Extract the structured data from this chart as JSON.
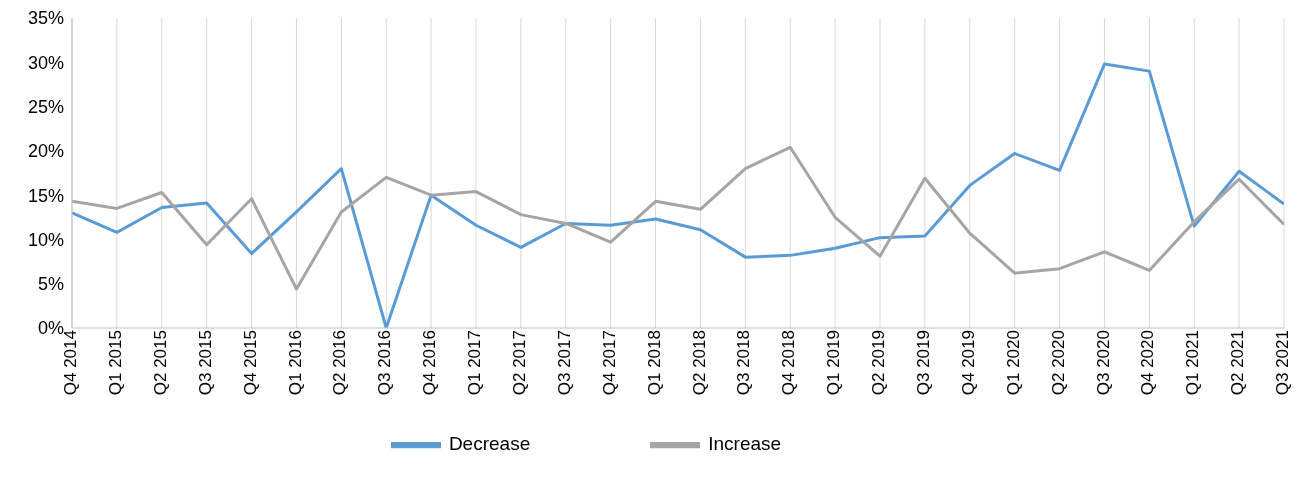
{
  "chart_data": {
    "type": "line",
    "categories": [
      "Q4 2014",
      "Q1 2015",
      "Q2 2015",
      "Q3 2015",
      "Q4 2015",
      "Q1 2016",
      "Q2 2016",
      "Q3 2016",
      "Q4 2016",
      "Q1 2017",
      "Q2 2017",
      "Q3 2017",
      "Q4 2017",
      "Q1 2018",
      "Q2 2018",
      "Q3 2018",
      "Q4 2018",
      "Q1 2019",
      "Q2 2019",
      "Q3 2019",
      "Q4 2019",
      "Q1 2020",
      "Q2 2020",
      "Q3 2020",
      "Q4 2020",
      "Q1 2021",
      "Q2 2021",
      "Q3 2021"
    ],
    "series": [
      {
        "name": "Decrease",
        "color": "#5b9bd5",
        "values": [
          13,
          10.8,
          13.6,
          14.1,
          8.4,
          13.1,
          18,
          0,
          15,
          11.6,
          9.1,
          11.8,
          11.6,
          12.3,
          11.1,
          8,
          8.2,
          9,
          10.2,
          10.4,
          16.1,
          19.7,
          17.8,
          29.8,
          29,
          11.5,
          17.7,
          14
        ]
      },
      {
        "name": "Increase",
        "color": "#a5a5a5",
        "values": [
          14.3,
          13.5,
          15.3,
          9.4,
          14.6,
          4.4,
          13.1,
          17,
          15,
          15.4,
          12.8,
          11.8,
          9.7,
          14.3,
          13.4,
          18,
          20.4,
          12.5,
          8.1,
          16.9,
          10.7,
          6.2,
          6.7,
          8.6,
          6.5,
          12,
          16.8,
          11.7
        ]
      }
    ],
    "ylim": [
      0,
      35
    ],
    "yticks": [
      {
        "value": 0,
        "label": "0%"
      },
      {
        "value": 5,
        "label": "5%"
      },
      {
        "value": 10,
        "label": "10%"
      },
      {
        "value": 15,
        "label": "15%"
      },
      {
        "value": 20,
        "label": "20%"
      },
      {
        "value": 25,
        "label": "25%"
      },
      {
        "value": 30,
        "label": "30%"
      },
      {
        "value": 35,
        "label": "35%"
      }
    ],
    "grid": "x",
    "legend": "bottom",
    "marker": "none",
    "line_style": "solid"
  }
}
